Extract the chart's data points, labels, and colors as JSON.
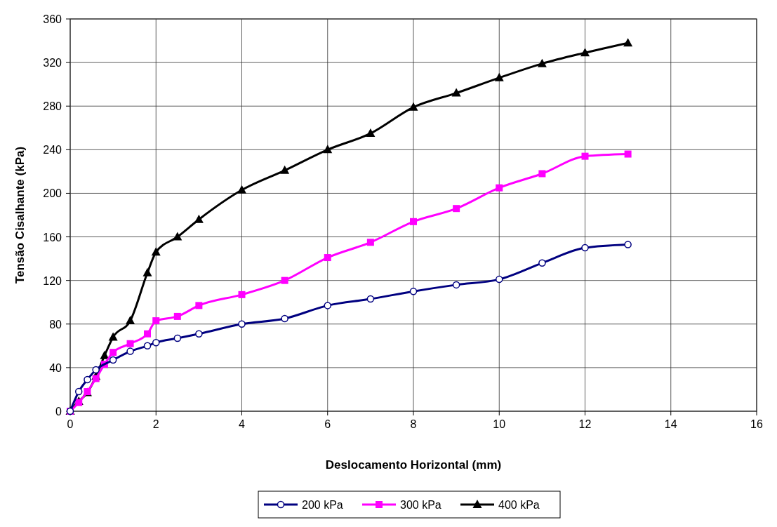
{
  "chart_data": {
    "type": "line",
    "xlabel": "Deslocamento Horizontal (mm)",
    "ylabel": "Tensão Cisalhante (kPa)",
    "xlim": [
      0,
      16
    ],
    "xticks": [
      0,
      2,
      4,
      6,
      8,
      10,
      12,
      14,
      16
    ],
    "ylim": [
      0,
      360
    ],
    "yticks": [
      0,
      40,
      80,
      120,
      160,
      200,
      240,
      280,
      320,
      360
    ],
    "grid": true,
    "legend": "bottom",
    "line_style": "solid",
    "series": [
      {
        "name": "200 kPa",
        "color": "#000080",
        "marker": "circle",
        "x": [
          0,
          0.2,
          0.4,
          0.6,
          1,
          1.4,
          1.8,
          2,
          2.5,
          3,
          4,
          5,
          6,
          7,
          8,
          9,
          10,
          11,
          12,
          13
        ],
        "values": [
          0,
          18,
          29,
          38,
          47,
          55,
          60,
          63,
          67,
          71,
          80,
          85,
          97,
          103,
          110,
          116,
          121,
          136,
          150,
          153
        ]
      },
      {
        "name": "300 kPa",
        "color": "#ff00ff",
        "marker": "square",
        "x": [
          0,
          0.2,
          0.4,
          0.6,
          0.8,
          1,
          1.4,
          1.8,
          2,
          2.5,
          3,
          4,
          5,
          6,
          7,
          8,
          9,
          10,
          11,
          12,
          13
        ],
        "values": [
          0,
          8,
          18,
          30,
          43,
          54,
          62,
          71,
          83,
          87,
          97,
          107,
          120,
          141,
          155,
          174,
          186,
          205,
          218,
          234,
          236
        ]
      },
      {
        "name": "400 kPa",
        "color": "#000000",
        "marker": "triangle",
        "x": [
          0,
          0.2,
          0.4,
          0.6,
          0.8,
          1,
          1.4,
          1.8,
          2,
          2.5,
          3,
          4,
          5,
          6,
          7,
          8,
          9,
          10,
          11,
          12,
          13
        ],
        "values": [
          0,
          9,
          17,
          32,
          51,
          68,
          83,
          127,
          146,
          160,
          176,
          203,
          221,
          240,
          255,
          279,
          292,
          306,
          319,
          329,
          338
        ]
      }
    ]
  }
}
